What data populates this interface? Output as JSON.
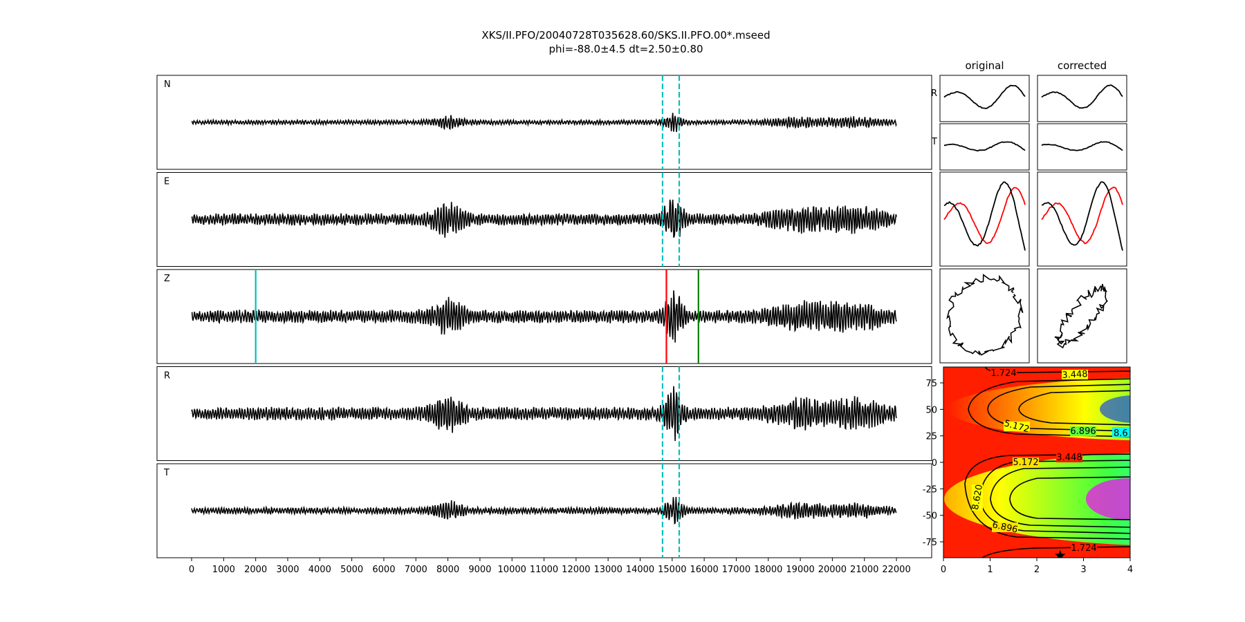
{
  "chart_data": {
    "type": "line",
    "title": "XKS/II.PFO/20040728T035628.60/SKS.II.PFO.00*.mseed",
    "subtitle": "phi=-88.0±4.5 dt=2.50±0.80",
    "traces": [
      {
        "name": "N"
      },
      {
        "name": "E"
      },
      {
        "name": "Z"
      },
      {
        "name": "R"
      },
      {
        "name": "T"
      }
    ],
    "x_ticks": [
      0,
      1000,
      2000,
      3000,
      4000,
      5000,
      6000,
      7000,
      8000,
      9000,
      10000,
      11000,
      12000,
      13000,
      14000,
      15000,
      16000,
      17000,
      18000,
      19000,
      20000,
      21000,
      22000
    ],
    "xlim": [
      -1080,
      23100
    ],
    "trace_x_range": [
      0,
      22000
    ],
    "window": [
      14700,
      15220
    ],
    "picks": [
      {
        "x": 2000,
        "color": "#00bfbf"
      },
      {
        "x": 14820,
        "color": "#ff0000"
      },
      {
        "x": 15820,
        "color": "#008000"
      }
    ],
    "particle_motion": {
      "col_titles": [
        "original",
        "corrected"
      ],
      "row_labels": [
        "R",
        "T"
      ],
      "overlay_colors": [
        "#000000",
        "#ff0000"
      ]
    },
    "misfit_map": {
      "x_ticks": [
        0,
        1,
        2,
        3,
        4
      ],
      "y_ticks": [
        75,
        50,
        25,
        0,
        -25,
        -50,
        -75
      ],
      "xlim": [
        0,
        4
      ],
      "ylim": [
        -90,
        90
      ],
      "contour_labels": [
        "1.724",
        "3.448",
        "5.172",
        "6.896",
        "8.620",
        "3.448",
        "5.172",
        "8.620",
        "6.896",
        "1.724",
        "8.6"
      ],
      "best_fit": {
        "dt": 2.5,
        "phi": -88.0
      }
    }
  }
}
